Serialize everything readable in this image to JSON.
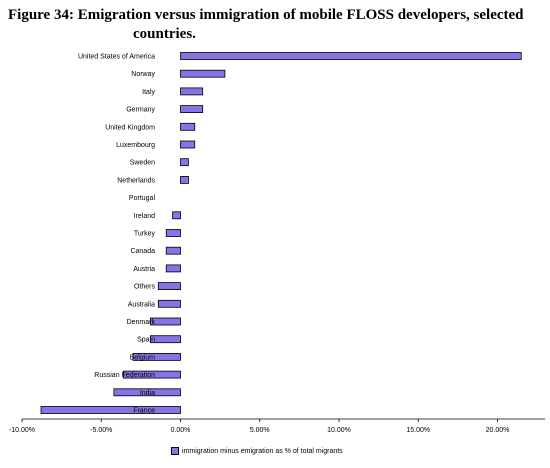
{
  "title": "Figure 34: Emigration versus immigration of mobile FLOSS developers, selected",
  "title_line2": "countries.",
  "chart_data": {
    "type": "bar",
    "orientation": "horizontal",
    "categories": [
      "United States of America",
      "Norway",
      "Italy",
      "Germany",
      "United Kingdom",
      "Luxembourg",
      "Sweden",
      "Netherlands",
      "Portugal",
      "Ireland",
      "Turkey",
      "Canada",
      "Austria",
      "Others",
      "Australia",
      "Denmark",
      "Spain",
      "Belgium",
      "Russian Federation",
      "India",
      "France"
    ],
    "values": [
      21.5,
      2.8,
      1.4,
      1.4,
      0.9,
      0.9,
      0.5,
      0.5,
      0.0,
      -0.5,
      -0.9,
      -0.9,
      -0.9,
      -1.4,
      -1.4,
      -1.9,
      -1.9,
      -3.0,
      -3.6,
      -4.2,
      -8.8
    ],
    "xlim": [
      -10,
      23
    ],
    "xticks": [
      -10,
      -5,
      0,
      5,
      10,
      15,
      20
    ],
    "xtick_labels": [
      "-10.00%",
      "-5.00%",
      "0.00%",
      "5.00%",
      "10.00%",
      "15.00%",
      "20.00%"
    ],
    "legend": "immigration minus emigration as % of total migrants",
    "legend_position": "bottom",
    "bar_color": "#8474e6",
    "grid": false
  }
}
